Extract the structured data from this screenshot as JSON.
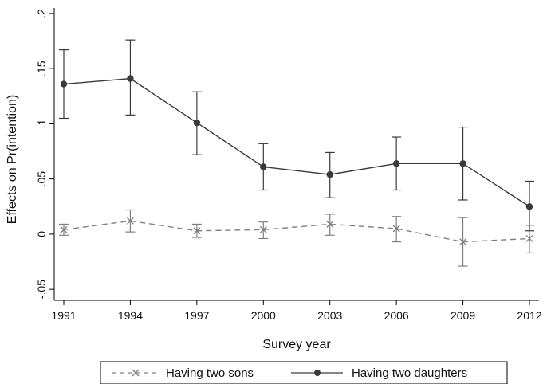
{
  "chart_data": {
    "type": "line",
    "xlabel": "Survey year",
    "ylabel": "Effects on Pr(intention)",
    "x": [
      1991,
      1994,
      1997,
      2000,
      2003,
      2006,
      2009,
      2012
    ],
    "x_tick_labels": [
      "1991",
      "1994",
      "1997",
      "2000",
      "2003",
      "2006",
      "2009",
      "2012"
    ],
    "y_ticks": [
      -0.05,
      0,
      0.05,
      0.1,
      0.15,
      0.2
    ],
    "y_tick_labels": [
      "-.05",
      "0",
      ".05",
      ".1",
      ".15",
      ".2"
    ],
    "ylim": [
      -0.06,
      0.205
    ],
    "xlim": [
      1991,
      2012
    ],
    "grid": false,
    "legend_position": "bottom",
    "series": [
      {
        "name": "Having two sons",
        "color": "#808080",
        "line_style": "dashed",
        "marker": "x-mark",
        "values": [
          0.004,
          0.012,
          0.003,
          0.004,
          0.009,
          0.005,
          -0.007,
          -0.004
        ],
        "ci_low": [
          -0.001,
          0.002,
          -0.003,
          -0.004,
          -0.001,
          -0.007,
          -0.029,
          -0.017
        ],
        "ci_high": [
          0.009,
          0.022,
          0.009,
          0.011,
          0.018,
          0.016,
          0.015,
          0.008
        ]
      },
      {
        "name": "Having two daughters",
        "color": "#3a3a3a",
        "line_style": "solid",
        "marker": "filled-circle",
        "values": [
          0.136,
          0.141,
          0.101,
          0.061,
          0.054,
          0.064,
          0.064,
          0.025
        ],
        "ci_low": [
          0.105,
          0.108,
          0.072,
          0.04,
          0.033,
          0.04,
          0.031,
          0.003
        ],
        "ci_high": [
          0.167,
          0.176,
          0.129,
          0.082,
          0.074,
          0.088,
          0.097,
          0.048
        ]
      }
    ]
  }
}
